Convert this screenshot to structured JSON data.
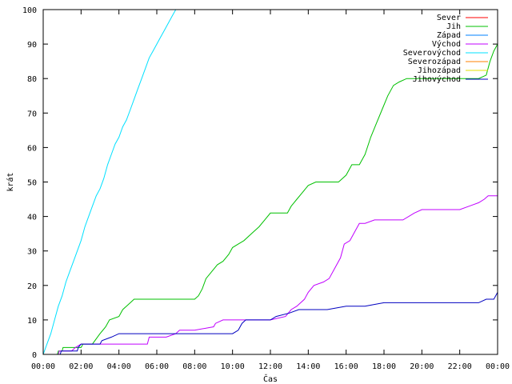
{
  "chart_data": {
    "type": "line",
    "title": "",
    "xlabel": "Čas",
    "ylabel": "krát",
    "xlim": [
      "00:00",
      "00:00"
    ],
    "ylim": [
      0,
      100
    ],
    "x_ticks": [
      "00:00",
      "02:00",
      "04:00",
      "06:00",
      "08:00",
      "10:00",
      "12:00",
      "14:00",
      "16:00",
      "18:00",
      "20:00",
      "22:00",
      "00:00"
    ],
    "y_ticks": [
      0,
      10,
      20,
      30,
      40,
      50,
      60,
      70,
      80,
      90,
      100
    ],
    "grid": false,
    "legend_position": "top-right",
    "series": [
      {
        "name": "Sever",
        "color": "#ff0000",
        "points": []
      },
      {
        "name": "Jih",
        "color": "#00c000",
        "points": [
          [
            0,
            0
          ],
          [
            0.75,
            0
          ],
          [
            0.8,
            1
          ],
          [
            1.0,
            1
          ],
          [
            1.05,
            2
          ],
          [
            1.5,
            2
          ],
          [
            2.0,
            2
          ],
          [
            2.1,
            3
          ],
          [
            2.6,
            3
          ],
          [
            3.0,
            6
          ],
          [
            3.3,
            8
          ],
          [
            3.5,
            10
          ],
          [
            4.0,
            11
          ],
          [
            4.2,
            13
          ],
          [
            4.6,
            15
          ],
          [
            4.8,
            16
          ],
          [
            5.0,
            16
          ],
          [
            6.0,
            16
          ],
          [
            7.0,
            16
          ],
          [
            8.0,
            16
          ],
          [
            8.2,
            17
          ],
          [
            8.4,
            19
          ],
          [
            8.6,
            22
          ],
          [
            8.9,
            24
          ],
          [
            9.2,
            26
          ],
          [
            9.5,
            27
          ],
          [
            9.8,
            29
          ],
          [
            10.0,
            31
          ],
          [
            10.3,
            32
          ],
          [
            10.6,
            33
          ],
          [
            11.0,
            35
          ],
          [
            11.4,
            37
          ],
          [
            11.7,
            39
          ],
          [
            12.0,
            41
          ],
          [
            12.5,
            41
          ],
          [
            12.9,
            41
          ],
          [
            13.1,
            43
          ],
          [
            13.4,
            45
          ],
          [
            13.7,
            47
          ],
          [
            14.0,
            49
          ],
          [
            14.4,
            50
          ],
          [
            15.0,
            50
          ],
          [
            15.6,
            50
          ],
          [
            16.0,
            52
          ],
          [
            16.3,
            55
          ],
          [
            16.7,
            55
          ],
          [
            17.0,
            58
          ],
          [
            17.3,
            63
          ],
          [
            17.6,
            67
          ],
          [
            17.9,
            71
          ],
          [
            18.2,
            75
          ],
          [
            18.5,
            78
          ],
          [
            18.8,
            79
          ],
          [
            19.2,
            80
          ],
          [
            20.0,
            80
          ],
          [
            21.0,
            80
          ],
          [
            22.0,
            80
          ],
          [
            23.0,
            80
          ],
          [
            23.4,
            81
          ],
          [
            23.6,
            85
          ],
          [
            23.8,
            88
          ],
          [
            24.0,
            90
          ]
        ]
      },
      {
        "name": "Západ",
        "color": "#0080ff",
        "points": []
      },
      {
        "name": "Východ",
        "color": "#c000ff",
        "points": [
          [
            0,
            0
          ],
          [
            0.8,
            0
          ],
          [
            0.85,
            1
          ],
          [
            1.5,
            1
          ],
          [
            1.7,
            2
          ],
          [
            2.0,
            3
          ],
          [
            3.0,
            3
          ],
          [
            4.0,
            3
          ],
          [
            5.0,
            3
          ],
          [
            5.5,
            3
          ],
          [
            5.6,
            5
          ],
          [
            6.5,
            5
          ],
          [
            7.0,
            6
          ],
          [
            7.2,
            7
          ],
          [
            8.0,
            7
          ],
          [
            9.0,
            8
          ],
          [
            9.1,
            9
          ],
          [
            9.5,
            10
          ],
          [
            10.0,
            10
          ],
          [
            11.0,
            10
          ],
          [
            12.0,
            10
          ],
          [
            12.8,
            11
          ],
          [
            13.1,
            13
          ],
          [
            13.4,
            14
          ],
          [
            13.8,
            16
          ],
          [
            14.0,
            18
          ],
          [
            14.3,
            20
          ],
          [
            14.8,
            21
          ],
          [
            15.1,
            22
          ],
          [
            15.4,
            25
          ],
          [
            15.7,
            28
          ],
          [
            15.9,
            32
          ],
          [
            16.2,
            33
          ],
          [
            16.5,
            36
          ],
          [
            16.7,
            38
          ],
          [
            17.0,
            38
          ],
          [
            17.5,
            39
          ],
          [
            18.0,
            39
          ],
          [
            19.0,
            39
          ],
          [
            19.6,
            41
          ],
          [
            20.0,
            42
          ],
          [
            21.0,
            42
          ],
          [
            22.0,
            42
          ],
          [
            22.5,
            43
          ],
          [
            23.0,
            44
          ],
          [
            23.3,
            45
          ],
          [
            23.5,
            46
          ],
          [
            24.0,
            46
          ]
        ]
      },
      {
        "name": "Severovýchod",
        "color": "#00e0ff",
        "points": [
          [
            0,
            0
          ],
          [
            0.2,
            3
          ],
          [
            0.4,
            6
          ],
          [
            0.6,
            10
          ],
          [
            0.8,
            14
          ],
          [
            1.0,
            17
          ],
          [
            1.2,
            21
          ],
          [
            1.4,
            24
          ],
          [
            1.6,
            27
          ],
          [
            1.8,
            30
          ],
          [
            2.0,
            33
          ],
          [
            2.2,
            37
          ],
          [
            2.4,
            40
          ],
          [
            2.6,
            43
          ],
          [
            2.8,
            46
          ],
          [
            3.0,
            48
          ],
          [
            3.2,
            51
          ],
          [
            3.4,
            55
          ],
          [
            3.6,
            58
          ],
          [
            3.8,
            61
          ],
          [
            4.0,
            63
          ],
          [
            4.2,
            66
          ],
          [
            4.4,
            68
          ],
          [
            4.6,
            71
          ],
          [
            4.8,
            74
          ],
          [
            5.0,
            77
          ],
          [
            5.2,
            80
          ],
          [
            5.4,
            83
          ],
          [
            5.6,
            86
          ],
          [
            5.8,
            88
          ],
          [
            6.0,
            90
          ],
          [
            6.2,
            92
          ],
          [
            6.4,
            94
          ],
          [
            6.6,
            96
          ],
          [
            6.8,
            98
          ],
          [
            7.0,
            100
          ],
          [
            7.1,
            100
          ]
        ]
      },
      {
        "name": "Severozápad",
        "color": "#ff8000",
        "points": []
      },
      {
        "name": "Jihozápad",
        "color": "#e0e000",
        "points": []
      },
      {
        "name": "Jihovýchod",
        "color": "#0000c0",
        "points": [
          [
            0,
            0
          ],
          [
            0.9,
            0
          ],
          [
            0.95,
            1
          ],
          [
            1.8,
            1
          ],
          [
            1.85,
            2
          ],
          [
            2.0,
            3
          ],
          [
            3.0,
            3
          ],
          [
            3.1,
            4
          ],
          [
            3.6,
            5
          ],
          [
            4.0,
            6
          ],
          [
            5.0,
            6
          ],
          [
            6.0,
            6
          ],
          [
            7.0,
            6
          ],
          [
            8.0,
            6
          ],
          [
            9.0,
            6
          ],
          [
            10.0,
            6
          ],
          [
            10.3,
            7
          ],
          [
            10.5,
            9
          ],
          [
            10.7,
            10
          ],
          [
            11.0,
            10
          ],
          [
            12.0,
            10
          ],
          [
            12.3,
            11
          ],
          [
            13.0,
            12
          ],
          [
            13.5,
            13
          ],
          [
            14.0,
            13
          ],
          [
            15.0,
            13
          ],
          [
            16.0,
            14
          ],
          [
            17.0,
            14
          ],
          [
            18.0,
            15
          ],
          [
            19.0,
            15
          ],
          [
            20.0,
            15
          ],
          [
            21.0,
            15
          ],
          [
            22.0,
            15
          ],
          [
            23.0,
            15
          ],
          [
            23.4,
            16
          ],
          [
            23.8,
            16
          ],
          [
            24.0,
            18
          ]
        ]
      }
    ]
  }
}
